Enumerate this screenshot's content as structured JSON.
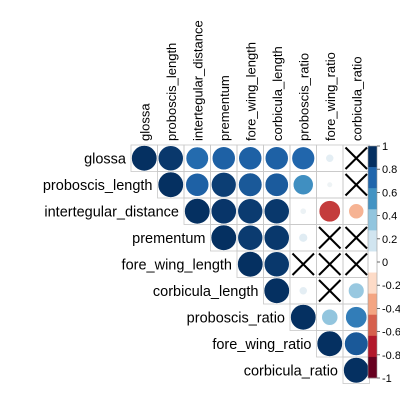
{
  "chart_data": {
    "type": "heatmap",
    "subtype": "correlation-upper-triangle",
    "variables": [
      "glossa",
      "proboscis_length",
      "intertegular_distance",
      "prementum",
      "fore_wing_length",
      "corbicula_length",
      "proboscis_ratio",
      "fore_wing_ratio",
      "corbicula_ratio"
    ],
    "matrix": [
      [
        1.0,
        0.97,
        0.78,
        0.82,
        0.82,
        0.82,
        0.8,
        0.1,
        null
      ],
      [
        null,
        1.0,
        0.82,
        0.95,
        0.85,
        0.84,
        0.62,
        0.05,
        null
      ],
      [
        null,
        null,
        1.0,
        0.98,
        0.96,
        0.97,
        0.06,
        -0.7,
        -0.35
      ],
      [
        null,
        null,
        null,
        1.0,
        0.96,
        0.97,
        0.12,
        null,
        null
      ],
      [
        null,
        null,
        null,
        null,
        1.0,
        0.97,
        null,
        null,
        null
      ],
      [
        null,
        null,
        null,
        null,
        null,
        1.0,
        0.1,
        null,
        0.38
      ],
      [
        null,
        null,
        null,
        null,
        null,
        null,
        1.0,
        0.4,
        0.7
      ],
      [
        null,
        null,
        null,
        null,
        null,
        null,
        null,
        1.0,
        0.85
      ],
      [
        null,
        null,
        null,
        null,
        null,
        null,
        null,
        null,
        1.0
      ]
    ],
    "crossed_cells": [
      [
        0,
        8
      ],
      [
        1,
        8
      ],
      [
        3,
        7
      ],
      [
        3,
        8
      ],
      [
        4,
        6
      ],
      [
        4,
        7
      ],
      [
        4,
        8
      ],
      [
        5,
        7
      ]
    ],
    "colorbar": {
      "range": [
        -1,
        1
      ],
      "ticks": [
        "1",
        "0.8",
        "0.6",
        "0.4",
        "0.2",
        "0",
        "-0.2",
        "-0.4",
        "-0.6",
        "-0.8",
        "-1"
      ],
      "colors": [
        "#053061",
        "#2166AC",
        "#4393C3",
        "#92C5DE",
        "#D1E5F0",
        "#FFFFFF",
        "#FDDBC7",
        "#F4A582",
        "#D6604D",
        "#B2182B",
        "#67001F"
      ],
      "position": "right"
    },
    "grid": true,
    "title": "",
    "xlabel": "",
    "ylabel": ""
  }
}
